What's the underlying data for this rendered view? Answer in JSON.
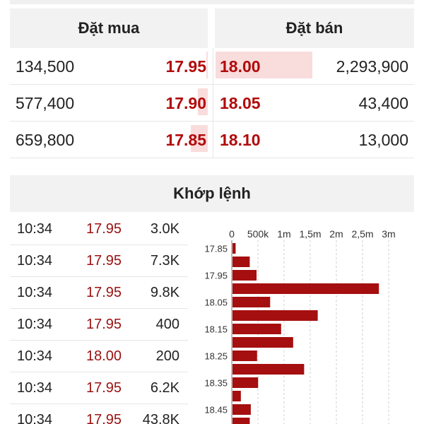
{
  "orderbook": {
    "buy_title": "Đặt mua",
    "sell_title": "Đặt bán",
    "rows": [
      {
        "bid_volume": "134,500",
        "bid_price": "17.95",
        "bid_share": 0.02,
        "ask_price": "18.00",
        "ask_volume": "2,293,900",
        "ask_share": 0.98
      },
      {
        "bid_volume": "577,400",
        "bid_price": "17.90",
        "bid_share": 0.18,
        "ask_price": "18.05",
        "ask_volume": "43,400",
        "ask_share": 0.0
      },
      {
        "bid_volume": "659,800",
        "bid_price": "17.85",
        "bid_share": 0.3,
        "ask_price": "18.10",
        "ask_volume": "13,000",
        "ask_share": 0.0
      }
    ]
  },
  "matching": {
    "title": "Khớp lệnh",
    "trades": [
      {
        "time": "10:34",
        "price": "17.95",
        "volume": "3.0K"
      },
      {
        "time": "10:34",
        "price": "17.95",
        "volume": "7.3K"
      },
      {
        "time": "10:34",
        "price": "17.95",
        "volume": "9.8K"
      },
      {
        "time": "10:34",
        "price": "17.95",
        "volume": "400"
      },
      {
        "time": "10:34",
        "price": "18.00",
        "volume": "200"
      },
      {
        "time": "10:34",
        "price": "17.95",
        "volume": "6.2K"
      },
      {
        "time": "10:34",
        "price": "17.95",
        "volume": "43.8K"
      }
    ]
  },
  "colors": {
    "price_red": "#b20a0a",
    "bar_red": "#a50f0f",
    "highlight_pink": "#f9dcdc",
    "header_gray": "#f2f2f2"
  },
  "chart_data": {
    "type": "bar",
    "orientation": "horizontal",
    "x_ticks": [
      "0",
      "500k",
      "1m",
      "1,5m",
      "2m",
      "2,5m",
      "3m"
    ],
    "xlim": [
      0,
      3000000
    ],
    "categories": [
      "17.85",
      "17.90",
      "17.95",
      "18.00",
      "18.05",
      "18.10",
      "18.15",
      "18.20",
      "18.25",
      "18.30",
      "18.35",
      "18.40",
      "18.45",
      "18.50"
    ],
    "category_tick_labels": [
      "17.85",
      "17.95",
      "18.05",
      "18.15",
      "18.25",
      "18.35",
      "18.45"
    ],
    "values": [
      60000,
      330000,
      460000,
      2800000,
      720000,
      1630000,
      930000,
      1160000,
      470000,
      1370000,
      490000,
      160000,
      350000,
      330000
    ],
    "grid": true
  }
}
